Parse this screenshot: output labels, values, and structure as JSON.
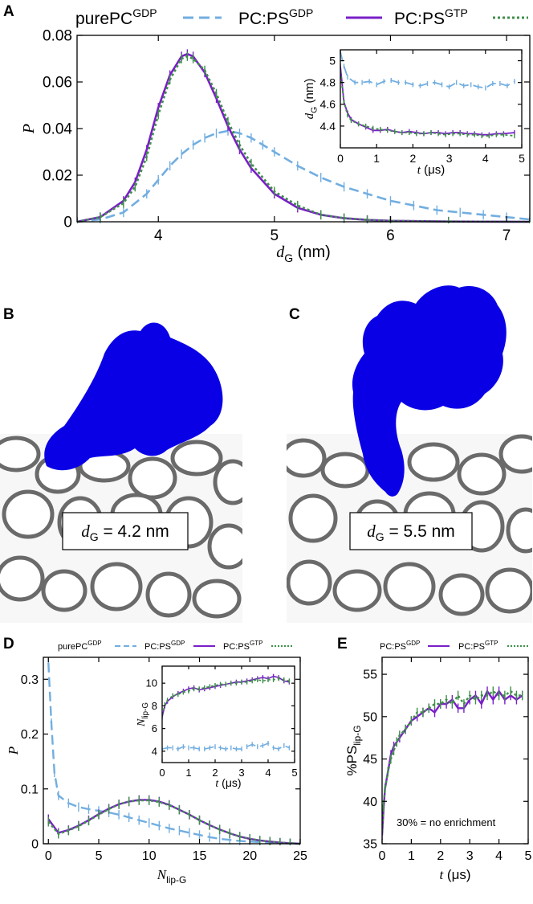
{
  "colors": {
    "purePC_GDP": "#72aee0",
    "PC_PS_GDP": "#7a1fc8",
    "PC_PS_GTP": "#3f8f4a",
    "protein": "#0a00e6",
    "membrane": "#6a6a6a"
  },
  "panels": {
    "A": "A",
    "B": "B",
    "C": "C",
    "D": "D",
    "E": "E"
  },
  "legend": {
    "purePC": {
      "base": "purePC",
      "sup": "GDP"
    },
    "pcps_gdp": {
      "base": "PC:PS",
      "sup": "GDP"
    },
    "pcps_gtp": {
      "base": "PC:PS",
      "sup": "GTP"
    }
  },
  "snapshots": {
    "B": {
      "label_sym": "d",
      "label_sub": "G",
      "label_val": " = 4.2 nm"
    },
    "C": {
      "label_sym": "d",
      "label_sub": "G",
      "label_val": " = 5.5 nm"
    }
  },
  "chart_data": [
    {
      "id": "A",
      "type": "line",
      "xlabel": {
        "sym": "d",
        "sub": "G",
        "unit": " (nm)"
      },
      "ylabel": "P",
      "xlim": [
        3.3,
        7.2
      ],
      "ylim": [
        0,
        0.08
      ],
      "xticks": [
        "4",
        "5",
        "6",
        "7"
      ],
      "xtick_values": [
        4,
        5,
        6,
        7
      ],
      "yticks": [
        "0",
        "0.02",
        "0.04",
        "0.06",
        "0.08"
      ],
      "ytick_values": [
        0,
        0.02,
        0.04,
        0.06,
        0.08
      ],
      "series": [
        {
          "name": "purePC GDP",
          "x": [
            3.3,
            3.5,
            3.7,
            3.9,
            4.0,
            4.1,
            4.2,
            4.3,
            4.4,
            4.5,
            4.6,
            4.7,
            4.8,
            4.9,
            5.0,
            5.2,
            5.4,
            5.6,
            5.8,
            6.0,
            6.2,
            6.4,
            6.6,
            6.8,
            7.0,
            7.2
          ],
          "y": [
            0.0,
            0.001,
            0.004,
            0.012,
            0.018,
            0.024,
            0.029,
            0.033,
            0.036,
            0.038,
            0.039,
            0.038,
            0.036,
            0.033,
            0.03,
            0.024,
            0.019,
            0.015,
            0.012,
            0.009,
            0.007,
            0.005,
            0.004,
            0.003,
            0.002,
            0.001
          ]
        },
        {
          "name": "PC:PS GDP",
          "x": [
            3.3,
            3.5,
            3.7,
            3.8,
            3.9,
            4.0,
            4.1,
            4.2,
            4.25,
            4.3,
            4.4,
            4.5,
            4.6,
            4.7,
            4.8,
            5.0,
            5.2,
            5.4,
            5.6,
            5.8,
            6.0,
            6.5,
            7.2
          ],
          "y": [
            0.0,
            0.002,
            0.009,
            0.017,
            0.031,
            0.049,
            0.063,
            0.071,
            0.072,
            0.071,
            0.064,
            0.053,
            0.041,
            0.031,
            0.023,
            0.012,
            0.006,
            0.003,
            0.0015,
            0.0008,
            0.0004,
            0.0001,
            0.0
          ]
        },
        {
          "name": "PC:PS GTP",
          "x": [
            3.3,
            3.5,
            3.7,
            3.8,
            3.9,
            4.0,
            4.1,
            4.2,
            4.25,
            4.3,
            4.4,
            4.5,
            4.6,
            4.7,
            4.8,
            5.0,
            5.2,
            5.4,
            5.6,
            5.8,
            6.0,
            6.5,
            7.2
          ],
          "y": [
            0.0,
            0.002,
            0.008,
            0.015,
            0.028,
            0.046,
            0.061,
            0.07,
            0.071,
            0.07,
            0.065,
            0.055,
            0.043,
            0.033,
            0.025,
            0.013,
            0.007,
            0.003,
            0.0016,
            0.0008,
            0.0004,
            0.0001,
            0.0
          ]
        }
      ]
    },
    {
      "id": "A-inset",
      "type": "line",
      "xlabel": {
        "sym": "t",
        "unit": " (μs)"
      },
      "ylabel": {
        "sym": "d",
        "sub": "G",
        "unit": " (nm)"
      },
      "xlim": [
        0,
        5
      ],
      "ylim": [
        4.2,
        5.1
      ],
      "xticks": [
        "0",
        "1",
        "2",
        "3",
        "4",
        "5"
      ],
      "xtick_values": [
        0,
        1,
        2,
        3,
        4,
        5
      ],
      "yticks": [
        "4.4",
        "4.6",
        "4.8",
        "5"
      ],
      "ytick_values": [
        4.4,
        4.6,
        4.8,
        5.0
      ],
      "series": [
        {
          "name": "purePC GDP",
          "x": [
            0,
            0.1,
            0.2,
            0.4,
            0.6,
            0.8,
            1.0,
            1.2,
            1.4,
            1.6,
            1.8,
            2.0,
            2.2,
            2.4,
            2.6,
            2.8,
            3.0,
            3.2,
            3.4,
            3.6,
            3.8,
            4.0,
            4.2,
            4.4,
            4.6,
            4.8
          ],
          "y": [
            5.08,
            4.95,
            4.85,
            4.8,
            4.8,
            4.81,
            4.78,
            4.81,
            4.82,
            4.8,
            4.8,
            4.78,
            4.77,
            4.79,
            4.8,
            4.78,
            4.76,
            4.8,
            4.77,
            4.78,
            4.76,
            4.75,
            4.79,
            4.79,
            4.77,
            4.81
          ]
        },
        {
          "name": "PC:PS GDP",
          "x": [
            0,
            0.1,
            0.2,
            0.3,
            0.5,
            0.7,
            0.9,
            1.1,
            1.3,
            1.5,
            1.7,
            1.9,
            2.1,
            2.3,
            2.5,
            2.7,
            2.9,
            3.1,
            3.3,
            3.5,
            3.7,
            3.9,
            4.1,
            4.3,
            4.5,
            4.8
          ],
          "y": [
            4.95,
            4.62,
            4.52,
            4.46,
            4.42,
            4.39,
            4.36,
            4.36,
            4.37,
            4.35,
            4.34,
            4.35,
            4.34,
            4.33,
            4.34,
            4.34,
            4.33,
            4.34,
            4.34,
            4.33,
            4.33,
            4.32,
            4.32,
            4.33,
            4.33,
            4.34
          ]
        },
        {
          "name": "PC:PS GTP",
          "x": [
            0,
            0.1,
            0.2,
            0.3,
            0.5,
            0.7,
            0.9,
            1.1,
            1.3,
            1.5,
            1.7,
            1.9,
            2.1,
            2.3,
            2.5,
            2.7,
            2.9,
            3.1,
            3.3,
            3.5,
            3.7,
            3.9,
            4.1,
            4.3,
            4.5,
            4.8
          ],
          "y": [
            4.9,
            4.62,
            4.5,
            4.45,
            4.42,
            4.4,
            4.38,
            4.37,
            4.36,
            4.35,
            4.34,
            4.34,
            4.33,
            4.33,
            4.34,
            4.33,
            4.32,
            4.33,
            4.33,
            4.32,
            4.32,
            4.31,
            4.31,
            4.32,
            4.32,
            4.31
          ]
        }
      ]
    },
    {
      "id": "D",
      "type": "line",
      "xlabel": {
        "sym": "N",
        "sub": "lip-G"
      },
      "ylabel": "P",
      "xlim": [
        -0.5,
        25
      ],
      "ylim": [
        0,
        0.34
      ],
      "xticks": [
        "0",
        "5",
        "10",
        "15",
        "20",
        "25"
      ],
      "xtick_values": [
        0,
        5,
        10,
        15,
        20,
        25
      ],
      "yticks": [
        "0",
        "0.1",
        "0.2",
        "0.3"
      ],
      "ytick_values": [
        0,
        0.1,
        0.2,
        0.3
      ],
      "series": [
        {
          "name": "purePC GDP",
          "x": [
            0,
            0.3,
            0.6,
            1,
            2,
            3,
            4,
            5,
            6,
            7,
            8,
            9,
            10,
            11,
            12,
            13,
            14,
            15,
            16,
            17,
            18,
            19,
            20,
            21,
            22,
            23,
            24,
            25
          ],
          "y": [
            0.33,
            0.22,
            0.13,
            0.088,
            0.074,
            0.067,
            0.063,
            0.06,
            0.057,
            0.053,
            0.048,
            0.043,
            0.038,
            0.033,
            0.028,
            0.024,
            0.02,
            0.016,
            0.012,
            0.009,
            0.007,
            0.005,
            0.004,
            0.003,
            0.002,
            0.001,
            0.0005,
            0.0
          ]
        },
        {
          "name": "PC:PS GDP",
          "x": [
            0,
            1,
            2,
            3,
            4,
            5,
            6,
            7,
            8,
            9,
            10,
            11,
            12,
            13,
            14,
            15,
            16,
            17,
            18,
            19,
            20,
            21,
            22,
            23,
            24,
            25
          ],
          "y": [
            0.045,
            0.02,
            0.025,
            0.033,
            0.043,
            0.054,
            0.064,
            0.072,
            0.077,
            0.08,
            0.08,
            0.077,
            0.071,
            0.062,
            0.053,
            0.043,
            0.034,
            0.026,
            0.019,
            0.013,
            0.009,
            0.006,
            0.004,
            0.002,
            0.001,
            0.0
          ]
        },
        {
          "name": "PC:PS GTP",
          "x": [
            0,
            1,
            2,
            3,
            4,
            5,
            6,
            7,
            8,
            9,
            10,
            11,
            12,
            13,
            14,
            15,
            16,
            17,
            18,
            19,
            20,
            21,
            22,
            23,
            24,
            25
          ],
          "y": [
            0.04,
            0.018,
            0.024,
            0.032,
            0.042,
            0.053,
            0.063,
            0.072,
            0.077,
            0.079,
            0.079,
            0.076,
            0.07,
            0.062,
            0.053,
            0.043,
            0.034,
            0.026,
            0.019,
            0.013,
            0.009,
            0.006,
            0.004,
            0.002,
            0.001,
            0.0
          ]
        }
      ]
    },
    {
      "id": "D-inset",
      "type": "line",
      "xlabel": {
        "sym": "t",
        "unit": " (μs)"
      },
      "ylabel": {
        "sym": "N",
        "sub": "lip-G"
      },
      "xlim": [
        0,
        5
      ],
      "ylim": [
        3,
        11.5
      ],
      "xticks": [
        "0",
        "1",
        "2",
        "3",
        "4",
        "5"
      ],
      "xtick_values": [
        0,
        1,
        2,
        3,
        4,
        5
      ],
      "yticks": [
        "4",
        "6",
        "8",
        "10"
      ],
      "ytick_values": [
        4,
        6,
        8,
        10
      ],
      "series": [
        {
          "name": "purePC GDP",
          "x": [
            0,
            0.2,
            0.4,
            0.6,
            0.8,
            1.0,
            1.2,
            1.4,
            1.6,
            1.8,
            2.0,
            2.2,
            2.4,
            2.6,
            2.8,
            3.0,
            3.2,
            3.4,
            3.6,
            3.8,
            4.0,
            4.2,
            4.4,
            4.6,
            4.8
          ],
          "y": [
            4.2,
            4.3,
            4.3,
            4.2,
            4.4,
            4.3,
            4.3,
            4.2,
            4.2,
            4.3,
            4.4,
            4.3,
            4.2,
            4.3,
            4.2,
            4.2,
            4.4,
            4.6,
            4.4,
            4.5,
            4.7,
            4.3,
            4.2,
            4.5,
            4.3
          ]
        },
        {
          "name": "PC:PS GDP",
          "x": [
            0,
            0.1,
            0.2,
            0.4,
            0.6,
            0.8,
            1.0,
            1.2,
            1.4,
            1.6,
            1.8,
            2.0,
            2.2,
            2.4,
            2.6,
            2.8,
            3.0,
            3.2,
            3.4,
            3.6,
            3.8,
            4.0,
            4.2,
            4.4,
            4.6,
            4.8
          ],
          "y": [
            7.0,
            8.0,
            8.4,
            8.8,
            9.1,
            9.3,
            9.5,
            9.6,
            9.4,
            9.5,
            9.6,
            9.7,
            9.8,
            9.9,
            10.0,
            10.1,
            10.1,
            10.2,
            10.3,
            10.4,
            10.5,
            10.4,
            10.6,
            10.5,
            10.2,
            10.1
          ]
        },
        {
          "name": "PC:PS GTP",
          "x": [
            0,
            0.1,
            0.2,
            0.4,
            0.6,
            0.8,
            1.0,
            1.2,
            1.4,
            1.6,
            1.8,
            2.0,
            2.2,
            2.4,
            2.6,
            2.8,
            3.0,
            3.2,
            3.4,
            3.6,
            3.8,
            4.0,
            4.2,
            4.4,
            4.6,
            4.8
          ],
          "y": [
            7.2,
            8.1,
            8.5,
            8.9,
            9.0,
            9.2,
            9.3,
            9.5,
            9.5,
            9.6,
            9.7,
            9.8,
            9.9,
            9.9,
            10.0,
            10.0,
            10.1,
            10.1,
            10.2,
            10.3,
            10.2,
            10.3,
            10.3,
            10.4,
            10.3,
            10.2
          ]
        }
      ]
    },
    {
      "id": "E",
      "type": "line",
      "xlabel": {
        "sym": "t",
        "unit": " (μs)"
      },
      "ylabel": {
        "sym": "%PS",
        "sub": "lip-G"
      },
      "xlim": [
        0,
        5
      ],
      "ylim": [
        35,
        57
      ],
      "xticks": [
        "0",
        "1",
        "2",
        "3",
        "4",
        "5"
      ],
      "xtick_values": [
        0,
        1,
        2,
        3,
        4,
        5
      ],
      "yticks": [
        "35",
        "40",
        "45",
        "50",
        "55"
      ],
      "ytick_values": [
        35,
        40,
        45,
        50,
        55
      ],
      "annotation": "30% = no enrichment",
      "series": [
        {
          "name": "PC:PS GDP",
          "x": [
            0,
            0.05,
            0.1,
            0.2,
            0.3,
            0.4,
            0.5,
            0.6,
            0.8,
            1.0,
            1.2,
            1.4,
            1.6,
            1.8,
            2.0,
            2.2,
            2.4,
            2.6,
            2.8,
            3.0,
            3.2,
            3.4,
            3.6,
            3.8,
            4.0,
            4.2,
            4.4,
            4.6,
            4.8
          ],
          "y": [
            36.0,
            39.0,
            41.5,
            43.5,
            45.5,
            46.5,
            47.0,
            47.5,
            48.5,
            49.5,
            50.0,
            50.5,
            51.0,
            50.5,
            51.5,
            51.5,
            52.0,
            51.0,
            51.0,
            52.0,
            52.5,
            51.5,
            53.0,
            52.0,
            53.0,
            52.0,
            52.5,
            52.0,
            52.5
          ]
        },
        {
          "name": "PC:PS GTP",
          "x": [
            0,
            0.05,
            0.1,
            0.2,
            0.3,
            0.4,
            0.5,
            0.6,
            0.8,
            1.0,
            1.2,
            1.4,
            1.6,
            1.8,
            2.0,
            2.2,
            2.4,
            2.6,
            2.8,
            3.0,
            3.2,
            3.4,
            3.6,
            3.8,
            4.0,
            4.2,
            4.4,
            4.6,
            4.8
          ],
          "y": [
            36.5,
            39.5,
            41.5,
            43.5,
            45.0,
            46.0,
            47.0,
            47.8,
            48.5,
            49.5,
            50.5,
            50.5,
            51.0,
            51.5,
            51.5,
            52.0,
            51.5,
            52.5,
            51.5,
            52.5,
            52.0,
            52.5,
            52.5,
            53.0,
            52.5,
            52.5,
            53.0,
            52.5,
            52.5
          ]
        }
      ]
    }
  ]
}
